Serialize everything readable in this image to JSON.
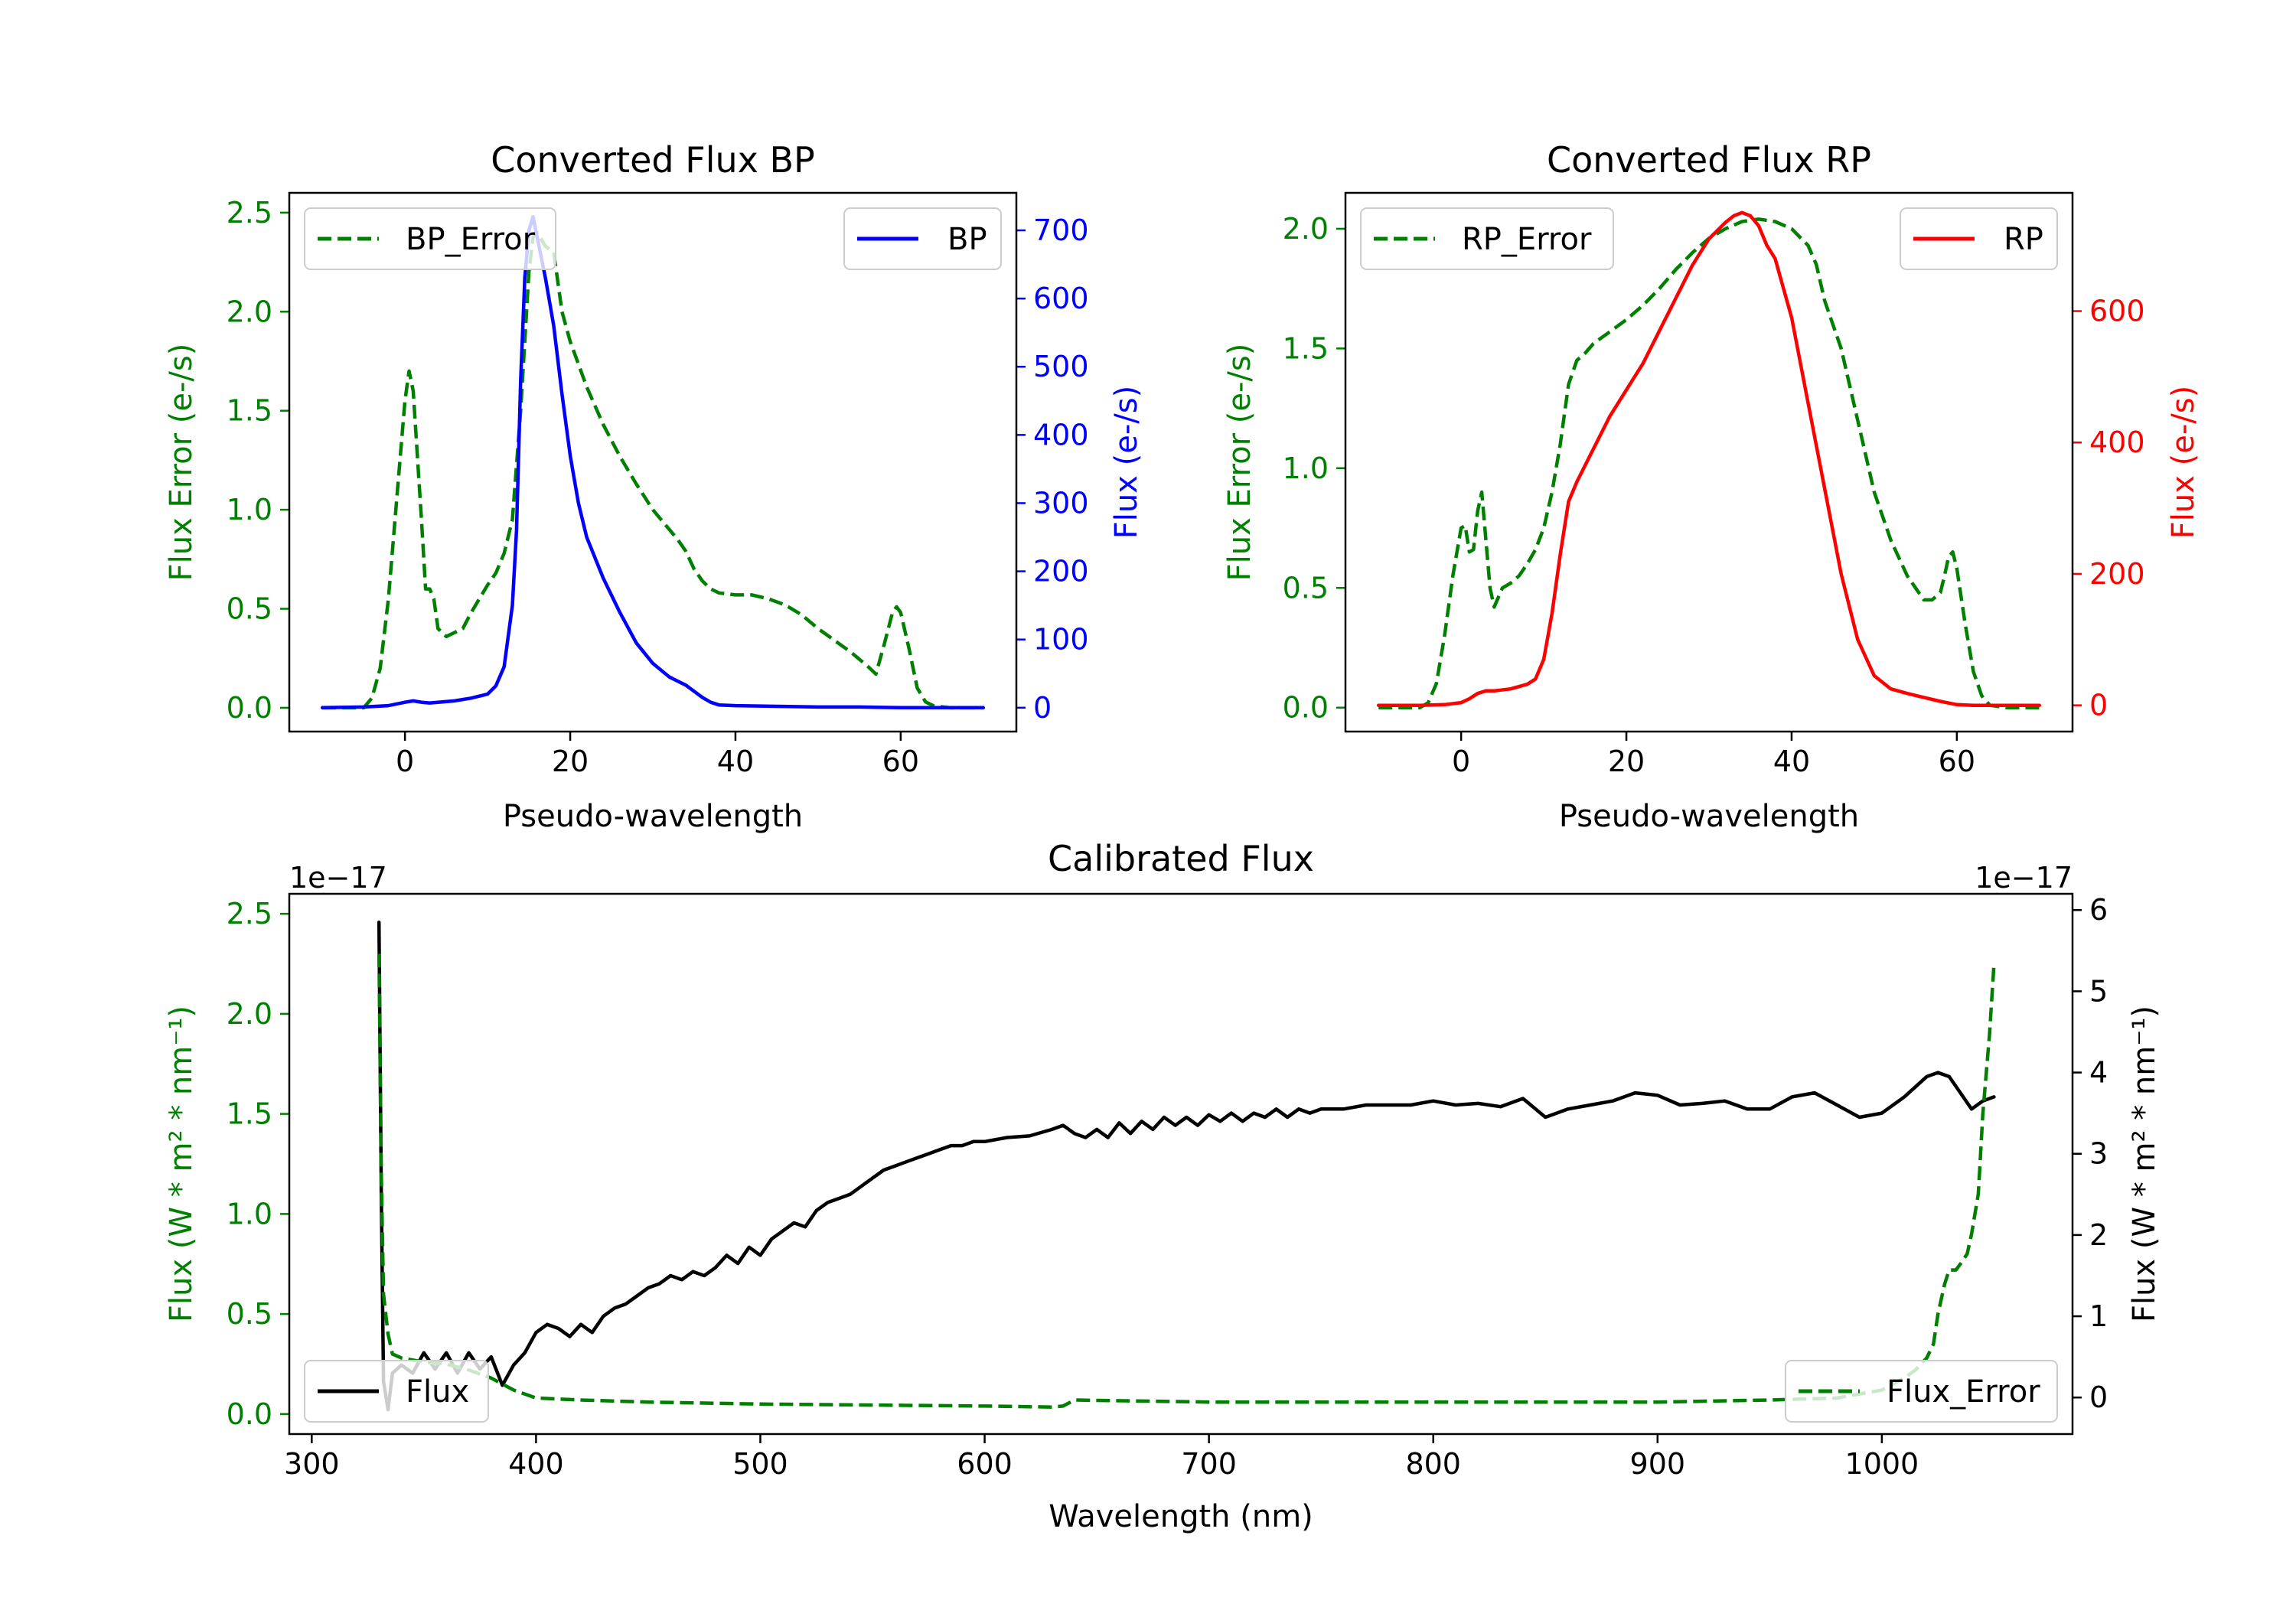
{
  "colors": {
    "error": "#008000",
    "bp": "#0000ff",
    "rp": "#ff0000",
    "flux": "#000000"
  },
  "chart_data": [
    {
      "type": "line",
      "id": "bp",
      "title": "Converted Flux BP",
      "xlabel": "Pseudo-wavelength",
      "ylabel_left": "Flux Error (e-/s)",
      "ylabel_right": "Flux (e-/s)",
      "xlim": [
        -14,
        74
      ],
      "ylim_left": [
        -0.12,
        2.6
      ],
      "ylim_right": [
        -35,
        755
      ],
      "xticks": [
        0,
        20,
        40,
        60
      ],
      "yticks_left": [
        0.0,
        0.5,
        1.0,
        1.5,
        2.0,
        2.5
      ],
      "yticks_right": [
        0,
        100,
        200,
        300,
        400,
        500,
        600,
        700
      ],
      "series": [
        {
          "name": "BP_Error",
          "axis": "left",
          "style": "dashed",
          "legend": "top-left",
          "x": [
            -10,
            -5,
            -4,
            -3,
            -2,
            -1,
            0,
            0.5,
            1,
            2,
            2.5,
            3,
            3.5,
            4,
            5,
            6,
            7,
            8,
            9,
            10,
            11,
            12,
            13,
            14,
            15,
            15.5,
            16,
            17,
            18,
            19,
            20,
            22,
            24,
            26,
            28,
            30,
            32,
            33,
            34,
            35,
            36,
            37,
            38,
            40,
            42,
            44,
            46,
            48,
            50,
            52,
            54,
            56,
            57,
            58,
            59,
            59.5,
            60,
            61,
            62,
            63,
            64,
            66,
            70
          ],
          "values": [
            0,
            0,
            0.05,
            0.2,
            0.55,
            1.05,
            1.55,
            1.7,
            1.6,
            0.95,
            0.6,
            0.6,
            0.55,
            0.4,
            0.36,
            0.38,
            0.4,
            0.48,
            0.55,
            0.62,
            0.68,
            0.78,
            0.95,
            1.5,
            2.2,
            2.38,
            2.4,
            2.33,
            2.3,
            2.0,
            1.85,
            1.62,
            1.43,
            1.27,
            1.13,
            1.0,
            0.9,
            0.85,
            0.79,
            0.7,
            0.64,
            0.6,
            0.58,
            0.57,
            0.57,
            0.55,
            0.52,
            0.47,
            0.4,
            0.34,
            0.28,
            0.21,
            0.17,
            0.32,
            0.48,
            0.51,
            0.48,
            0.3,
            0.1,
            0.03,
            0.01,
            0,
            0
          ]
        },
        {
          "name": "BP",
          "axis": "right",
          "style": "solid",
          "legend": "top-right",
          "x": [
            -10,
            -5,
            -2,
            0,
            1,
            2,
            3,
            4,
            6,
            8,
            10,
            11,
            12,
            13,
            13.5,
            14,
            14.5,
            15,
            15.5,
            16,
            17,
            18,
            19,
            20,
            21,
            22,
            24,
            26,
            28,
            30,
            32,
            34,
            36,
            37,
            38,
            40,
            45,
            50,
            55,
            60,
            65,
            70
          ],
          "values": [
            0,
            1,
            3,
            8,
            10,
            8,
            7,
            8,
            10,
            14,
            20,
            32,
            60,
            150,
            260,
            480,
            630,
            700,
            720,
            690,
            630,
            560,
            460,
            370,
            300,
            250,
            190,
            140,
            95,
            65,
            45,
            33,
            15,
            8,
            4,
            3,
            2,
            1,
            1,
            0,
            0,
            0
          ]
        }
      ]
    },
    {
      "type": "line",
      "id": "rp",
      "title": "Converted Flux RP",
      "xlabel": "Pseudo-wavelength",
      "ylabel_left": "Flux Error (e-/s)",
      "ylabel_right": "Flux (e-/s)",
      "xlim": [
        -14,
        74
      ],
      "ylim_left": [
        -0.1,
        2.15
      ],
      "ylim_right": [
        -40,
        780
      ],
      "xticks": [
        0,
        20,
        40,
        60
      ],
      "yticks_left": [
        0.0,
        0.5,
        1.0,
        1.5,
        2.0
      ],
      "yticks_right": [
        0,
        200,
        400,
        600
      ],
      "series": [
        {
          "name": "RP_Error",
          "axis": "left",
          "style": "dashed",
          "legend": "top-left",
          "x": [
            -10,
            -5,
            -4,
            -3,
            -2,
            -1,
            0,
            0.5,
            1,
            1.5,
            2,
            2.5,
            3,
            3.5,
            4,
            5,
            6,
            7,
            8,
            9,
            10,
            11,
            12,
            13,
            14,
            15,
            16,
            18,
            20,
            22,
            24,
            26,
            28,
            30,
            32,
            34,
            36,
            38,
            40,
            42,
            43,
            44,
            46,
            48,
            50,
            52,
            54,
            55,
            56,
            57,
            58,
            58.5,
            59,
            59.5,
            60,
            61,
            62,
            63,
            64,
            66,
            70
          ],
          "values": [
            0,
            0,
            0.02,
            0.1,
            0.3,
            0.55,
            0.75,
            0.76,
            0.65,
            0.66,
            0.82,
            0.9,
            0.7,
            0.5,
            0.42,
            0.5,
            0.52,
            0.55,
            0.6,
            0.66,
            0.75,
            0.9,
            1.1,
            1.35,
            1.45,
            1.48,
            1.52,
            1.57,
            1.62,
            1.68,
            1.75,
            1.83,
            1.9,
            1.96,
            2.0,
            2.03,
            2.04,
            2.03,
            2.0,
            1.93,
            1.85,
            1.7,
            1.5,
            1.2,
            0.9,
            0.7,
            0.55,
            0.5,
            0.45,
            0.45,
            0.48,
            0.55,
            0.63,
            0.65,
            0.58,
            0.35,
            0.15,
            0.05,
            0.01,
            0,
            0
          ]
        },
        {
          "name": "RP",
          "axis": "right",
          "style": "solid",
          "legend": "top-right",
          "x": [
            -10,
            -5,
            -2,
            0,
            1,
            2,
            3,
            4,
            6,
            8,
            9,
            10,
            11,
            12,
            13,
            14,
            15,
            16,
            18,
            20,
            22,
            24,
            26,
            28,
            30,
            32,
            33,
            34,
            35,
            36,
            37,
            38,
            40,
            42,
            44,
            46,
            48,
            50,
            52,
            54,
            56,
            58,
            60,
            62,
            66,
            70
          ],
          "values": [
            0,
            0,
            1,
            4,
            10,
            18,
            22,
            22,
            25,
            32,
            40,
            70,
            140,
            230,
            310,
            340,
            365,
            390,
            440,
            480,
            520,
            570,
            620,
            670,
            710,
            735,
            745,
            750,
            745,
            730,
            700,
            680,
            590,
            460,
            330,
            200,
            100,
            45,
            25,
            18,
            12,
            6,
            1,
            0,
            0,
            0
          ]
        }
      ]
    },
    {
      "type": "line",
      "id": "cal",
      "title": "Calibrated Flux",
      "xlabel": "Wavelength (nm)",
      "ylabel_left": "Flux (W * m² * nm⁻¹)",
      "ylabel_right": "Flux (W * m² * nm⁻¹)",
      "offset_left": "1e−17",
      "offset_right": "1e−17",
      "xlim": [
        290,
        1085
      ],
      "ylim_left": [
        -0.1,
        2.6
      ],
      "ylim_right": [
        -0.45,
        6.2
      ],
      "xticks": [
        300,
        400,
        500,
        600,
        700,
        800,
        900,
        1000
      ],
      "yticks_left": [
        0.0,
        0.5,
        1.0,
        1.5,
        2.0,
        2.5
      ],
      "yticks_right": [
        0,
        1,
        2,
        3,
        4,
        5,
        6
      ],
      "series": [
        {
          "name": "Flux",
          "axis": "right",
          "style": "solid",
          "legend": "lower-left",
          "x": [
            330,
            331,
            332,
            334,
            336,
            340,
            345,
            350,
            355,
            360,
            365,
            370,
            375,
            380,
            385,
            390,
            395,
            400,
            405,
            410,
            415,
            420,
            425,
            430,
            435,
            440,
            445,
            450,
            455,
            460,
            465,
            470,
            475,
            480,
            485,
            490,
            495,
            500,
            505,
            510,
            515,
            520,
            525,
            530,
            535,
            540,
            545,
            550,
            555,
            560,
            565,
            570,
            575,
            580,
            585,
            590,
            595,
            600,
            610,
            620,
            630,
            635,
            640,
            645,
            650,
            655,
            660,
            665,
            670,
            675,
            680,
            685,
            690,
            695,
            700,
            705,
            710,
            715,
            720,
            725,
            730,
            735,
            740,
            745,
            750,
            760,
            770,
            780,
            790,
            800,
            810,
            820,
            830,
            840,
            850,
            860,
            870,
            880,
            890,
            900,
            910,
            920,
            930,
            940,
            950,
            960,
            970,
            980,
            990,
            1000,
            1010,
            1020,
            1025,
            1030,
            1035,
            1040,
            1045,
            1050
          ],
          "values": [
            5.85,
            2.5,
            0.2,
            -0.15,
            0.3,
            0.4,
            0.3,
            0.55,
            0.35,
            0.55,
            0.3,
            0.55,
            0.35,
            0.5,
            0.15,
            0.4,
            0.55,
            0.8,
            0.9,
            0.85,
            0.75,
            0.9,
            0.8,
            1.0,
            1.1,
            1.15,
            1.25,
            1.35,
            1.4,
            1.5,
            1.45,
            1.55,
            1.5,
            1.6,
            1.75,
            1.65,
            1.85,
            1.75,
            1.95,
            2.05,
            2.15,
            2.1,
            2.3,
            2.4,
            2.45,
            2.5,
            2.6,
            2.7,
            2.8,
            2.85,
            2.9,
            2.95,
            3.0,
            3.05,
            3.1,
            3.1,
            3.15,
            3.15,
            3.2,
            3.22,
            3.3,
            3.35,
            3.25,
            3.2,
            3.3,
            3.2,
            3.38,
            3.25,
            3.4,
            3.3,
            3.45,
            3.35,
            3.45,
            3.35,
            3.48,
            3.4,
            3.5,
            3.4,
            3.5,
            3.45,
            3.55,
            3.45,
            3.55,
            3.5,
            3.55,
            3.55,
            3.6,
            3.6,
            3.6,
            3.65,
            3.6,
            3.62,
            3.58,
            3.68,
            3.45,
            3.55,
            3.6,
            3.65,
            3.75,
            3.72,
            3.6,
            3.62,
            3.65,
            3.55,
            3.55,
            3.7,
            3.75,
            3.6,
            3.45,
            3.5,
            3.7,
            3.95,
            4.0,
            3.95,
            3.75,
            3.55,
            3.65,
            3.7
          ]
        },
        {
          "name": "Flux_Error",
          "axis": "left",
          "style": "dashed",
          "legend": "lower-right",
          "x": [
            330,
            331,
            332,
            334,
            336,
            340,
            350,
            360,
            370,
            380,
            390,
            400,
            420,
            450,
            500,
            550,
            600,
            630,
            635,
            640,
            700,
            750,
            800,
            850,
            900,
            950,
            980,
            1000,
            1010,
            1015,
            1020,
            1023,
            1025,
            1028,
            1030,
            1033,
            1035,
            1038,
            1040,
            1043,
            1045,
            1048,
            1050
          ],
          "values": [
            2.3,
            1.2,
            0.6,
            0.4,
            0.3,
            0.28,
            0.26,
            0.25,
            0.22,
            0.18,
            0.12,
            0.08,
            0.07,
            0.06,
            0.05,
            0.045,
            0.04,
            0.035,
            0.04,
            0.07,
            0.06,
            0.06,
            0.06,
            0.06,
            0.06,
            0.07,
            0.08,
            0.12,
            0.18,
            0.22,
            0.28,
            0.35,
            0.5,
            0.65,
            0.72,
            0.72,
            0.75,
            0.8,
            0.9,
            1.1,
            1.5,
            1.9,
            2.25
          ]
        }
      ]
    }
  ]
}
